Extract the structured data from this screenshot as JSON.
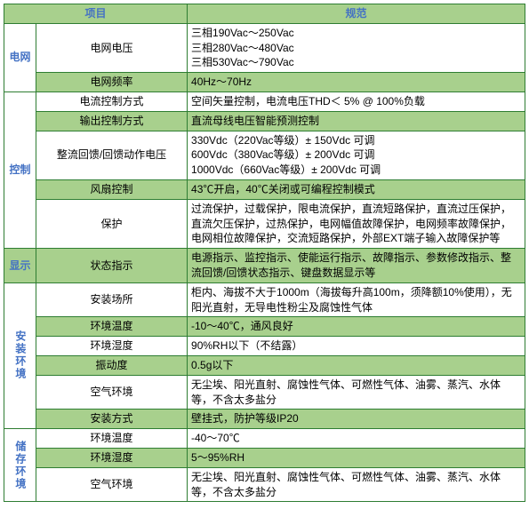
{
  "colors": {
    "border": "#2e7d32",
    "header_bg": "#a8d08d",
    "accent_text": "#4472c4",
    "alt_row_bg": "#a8d08d",
    "body_text": "#000000"
  },
  "header": {
    "col1": "项目",
    "col2": "规范"
  },
  "sections": [
    {
      "name": "电网",
      "rows": [
        {
          "item": "电网电压",
          "spec": "三相190Vac～250Vac\n三相280Vac～480Vac\n三相530Vac～790Vac",
          "alt": false
        },
        {
          "item": "电网频率",
          "spec": "40Hz～70Hz",
          "alt": true
        }
      ]
    },
    {
      "name": "控制",
      "rows": [
        {
          "item": "电流控制方式",
          "spec": "空间矢量控制，电流电压THD＜ 5% @ 100%负载",
          "alt": false
        },
        {
          "item": "输出控制方式",
          "spec": "直流母线电压智能预测控制",
          "alt": true
        },
        {
          "item": "整流回馈/回馈动作电压",
          "spec": "330Vdc（220Vac等级）± 150Vdc 可调\n600Vdc（380Vac等级）± 200Vdc 可调\n1000Vdc（660Vac等级）± 200Vdc 可调",
          "alt": false
        },
        {
          "item": "风扇控制",
          "spec": "43℃开启，40℃关闭或可编程控制模式",
          "alt": true
        },
        {
          "item": "保护",
          "spec": "过流保护，过载保护，限电流保护，直流短路保护，直流过压保护，直流欠压保护，过热保护，电网幅值故障保护，电网频率故障保护，电网相位故障保护，交流短路保护，外部EXT端子输入故障保护等",
          "alt": false
        }
      ]
    },
    {
      "name": "显示",
      "rows": [
        {
          "item": "状态指示",
          "spec": "电源指示、监控指示、使能运行指示、故障指示、参数修改指示、整流回馈/回馈状态指示、键盘数据显示等",
          "alt": true
        }
      ]
    },
    {
      "name": "安装环境",
      "rows": [
        {
          "item": "安装场所",
          "spec": "柜内、海拔不大于1000m（海拔每升高100m，须降额10%使用），无阳光直射，无导电性粉尘及腐蚀性气体",
          "alt": false
        },
        {
          "item": "环境温度",
          "spec": "-10～40℃，通风良好",
          "alt": true
        },
        {
          "item": "环境湿度",
          "spec": "90%RH以下（不结露）",
          "alt": false
        },
        {
          "item": "振动度",
          "spec": "0.5g以下",
          "alt": true
        },
        {
          "item": "空气环境",
          "spec": "无尘埃、阳光直射、腐蚀性气体、可燃性气体、油雾、蒸汽、水体等，不含太多盐分",
          "alt": false
        },
        {
          "item": "安装方式",
          "spec": "壁挂式，防护等级IP20",
          "alt": true
        }
      ]
    },
    {
      "name": "储存环境",
      "rows": [
        {
          "item": "环境温度",
          "spec": "-40～70℃",
          "alt": false
        },
        {
          "item": "环境湿度",
          "spec": "5～95%RH",
          "alt": true
        },
        {
          "item": "空气环境",
          "spec": "无尘埃、阳光直射、腐蚀性气体、可燃性气体、油雾、蒸汽、水体等，不含太多盐分",
          "alt": false
        }
      ]
    }
  ]
}
